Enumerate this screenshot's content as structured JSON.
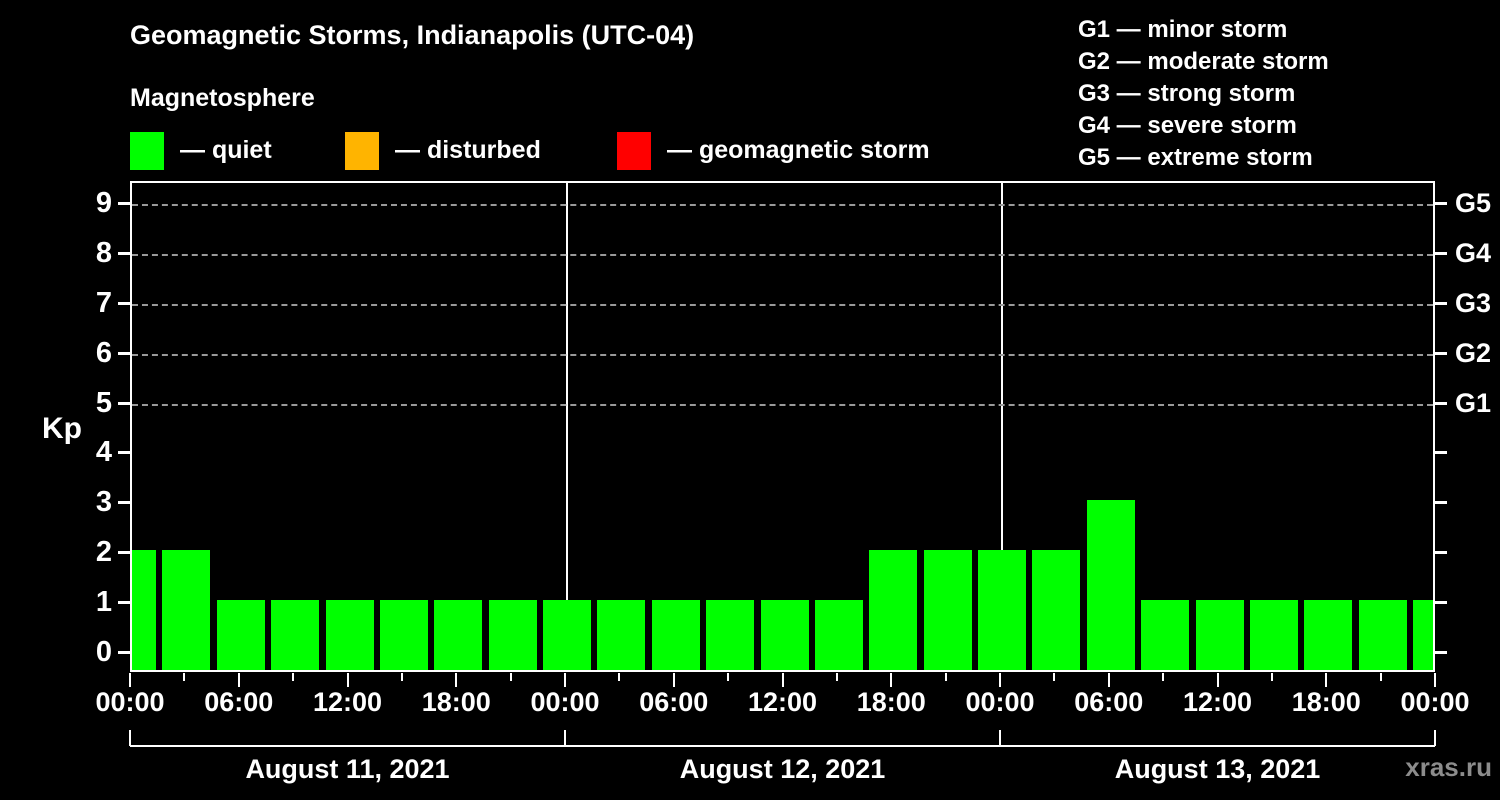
{
  "header": {
    "title": "Geomagnetic Storms, Indianapolis (UTC-04)",
    "subtitle": "Magnetosphere"
  },
  "legend": {
    "items": [
      {
        "name": "quiet",
        "label": "— quiet",
        "color": "#00FF00"
      },
      {
        "name": "disturbed",
        "label": "— disturbed",
        "color": "#FFB400"
      },
      {
        "name": "geomagnetic-storm",
        "label": "— geomagnetic storm",
        "color": "#FF0000"
      }
    ]
  },
  "g_legend": {
    "items": [
      "G1 — minor storm",
      "G2 — moderate storm",
      "G3 — strong storm",
      "G4 — severe storm",
      "G5 — extreme storm"
    ]
  },
  "watermark": "xras.ru",
  "colors": {
    "background": "#000000",
    "text": "#FFFFFF",
    "axis": "#FFFFFF",
    "grid": "#9A9A9A",
    "bar_quiet": "#00FF00",
    "bar_disturbed": "#FFB400",
    "bar_storm": "#FF0000",
    "watermark": "#8C8C8C"
  },
  "chart_data": {
    "type": "bar",
    "title": "Geomagnetic Storms, Indianapolis (UTC-04)",
    "xlabel": "",
    "ylabel": "Kp",
    "ylim": [
      0,
      9
    ],
    "y_ticks": [
      0,
      1,
      2,
      3,
      4,
      5,
      6,
      7,
      8,
      9
    ],
    "grid": "dashed horizontal gridlines at Kp 5,6,7,8,9",
    "legend_position": "top-left",
    "right_axis_labels": [
      {
        "value": 5,
        "label": "G1"
      },
      {
        "value": 6,
        "label": "G2"
      },
      {
        "value": 7,
        "label": "G3"
      },
      {
        "value": 8,
        "label": "G4"
      },
      {
        "value": 9,
        "label": "G5"
      }
    ],
    "x_range_hours": [
      0,
      72
    ],
    "bar_interval_hours": 3,
    "x_tick_labels": [
      {
        "hour": 0,
        "label": "00:00"
      },
      {
        "hour": 6,
        "label": "06:00"
      },
      {
        "hour": 12,
        "label": "12:00"
      },
      {
        "hour": 18,
        "label": "18:00"
      },
      {
        "hour": 24,
        "label": "00:00"
      },
      {
        "hour": 30,
        "label": "06:00"
      },
      {
        "hour": 36,
        "label": "12:00"
      },
      {
        "hour": 42,
        "label": "18:00"
      },
      {
        "hour": 48,
        "label": "00:00"
      },
      {
        "hour": 54,
        "label": "06:00"
      },
      {
        "hour": 60,
        "label": "12:00"
      },
      {
        "hour": 66,
        "label": "18:00"
      },
      {
        "hour": 72,
        "label": "00:00"
      }
    ],
    "days": [
      {
        "label": "August 11, 2021",
        "start_hour": 0
      },
      {
        "label": "August 12, 2021",
        "start_hour": 24
      },
      {
        "label": "August 13, 2021",
        "start_hour": 48
      }
    ],
    "day_boundary_hours": [
      24,
      48
    ],
    "series": [
      {
        "name": "Kp index",
        "color": "#00FF00",
        "points": [
          {
            "hour": 0,
            "kp": 2
          },
          {
            "hour": 3,
            "kp": 2
          },
          {
            "hour": 6,
            "kp": 1
          },
          {
            "hour": 9,
            "kp": 1
          },
          {
            "hour": 12,
            "kp": 1
          },
          {
            "hour": 15,
            "kp": 1
          },
          {
            "hour": 18,
            "kp": 1
          },
          {
            "hour": 21,
            "kp": 1
          },
          {
            "hour": 24,
            "kp": 1
          },
          {
            "hour": 27,
            "kp": 1
          },
          {
            "hour": 30,
            "kp": 1
          },
          {
            "hour": 33,
            "kp": 1
          },
          {
            "hour": 36,
            "kp": 1
          },
          {
            "hour": 39,
            "kp": 1
          },
          {
            "hour": 42,
            "kp": 2
          },
          {
            "hour": 45,
            "kp": 2
          },
          {
            "hour": 48,
            "kp": 2
          },
          {
            "hour": 51,
            "kp": 2
          },
          {
            "hour": 54,
            "kp": 3
          },
          {
            "hour": 57,
            "kp": 1
          },
          {
            "hour": 60,
            "kp": 1
          },
          {
            "hour": 63,
            "kp": 1
          },
          {
            "hour": 66,
            "kp": 1
          },
          {
            "hour": 69,
            "kp": 1
          },
          {
            "hour": 72,
            "kp": 1
          }
        ]
      }
    ]
  }
}
